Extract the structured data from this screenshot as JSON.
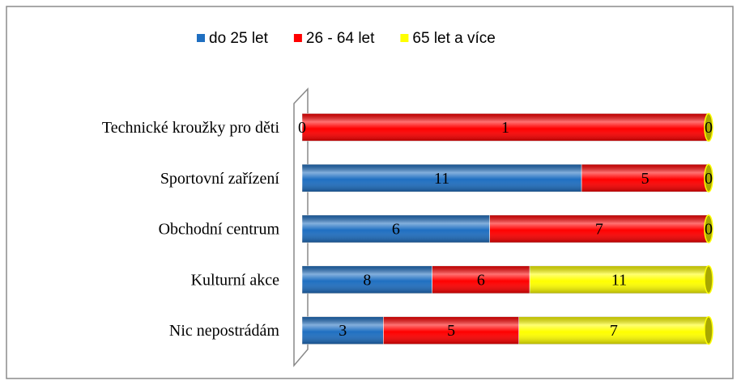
{
  "chart_data": {
    "type": "bar",
    "orientation": "horizontal",
    "stacked": "percent",
    "categories": [
      "Technické kroužky pro děti",
      "Sportovní zařízení",
      "Obchodní centrum",
      "Kulturní akce",
      "Nic nepostrádám"
    ],
    "series": [
      {
        "name": "do 25 let",
        "color": "#1f6fc1",
        "values": [
          0,
          11,
          6,
          8,
          3
        ]
      },
      {
        "name": "26 - 64 let",
        "color": "#ff0000",
        "values": [
          1,
          5,
          7,
          6,
          5
        ]
      },
      {
        "name": "65 let a více",
        "color": "#ffff00",
        "values": [
          0,
          0,
          0,
          11,
          7
        ]
      }
    ],
    "legend": "top"
  }
}
